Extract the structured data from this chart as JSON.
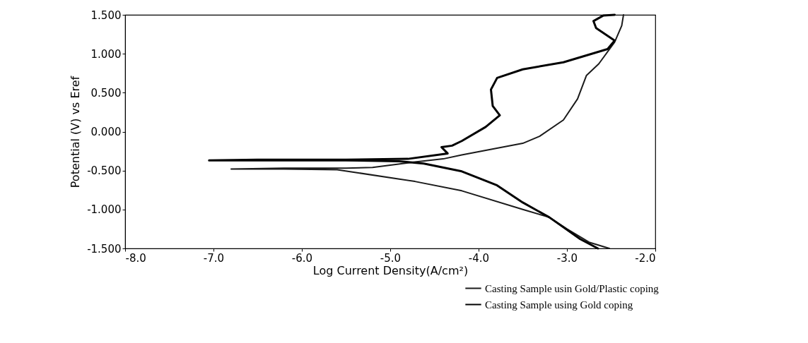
{
  "chart_data": {
    "type": "line",
    "xlabel": "Log Current Density(A/cm²)",
    "ylabel": "Potential (V) vs Eref",
    "xlim": [
      -8,
      -2
    ],
    "xticks": [
      {
        "value": -8,
        "label": "-8.0"
      },
      {
        "value": -7,
        "label": "-7.0"
      },
      {
        "value": -6,
        "label": "-6.0"
      },
      {
        "value": -5,
        "label": "-5.0"
      },
      {
        "value": -4,
        "label": "-4.0"
      },
      {
        "value": -3,
        "label": "-3.0"
      },
      {
        "value": -2,
        "label": "-2.0"
      }
    ],
    "ylim": [
      -1.5,
      1.5
    ],
    "yticks": [
      {
        "value": -1.5,
        "label": "-1.500"
      },
      {
        "value": -1,
        "label": "-1.000"
      },
      {
        "value": -0.5,
        "label": "-0.500"
      },
      {
        "value": 0,
        "label": "0.000"
      },
      {
        "value": 0.5,
        "label": "0.500"
      },
      {
        "value": 1,
        "label": "1.000"
      },
      {
        "value": 1.5,
        "label": "1.500"
      }
    ],
    "grid": false,
    "legend": "bottom right",
    "marker": "none",
    "line_style": "solid",
    "series": [
      {
        "name": "Casting Sample usin Gold/Plastic coping",
        "color": "#1a1a1a",
        "x": [
          -2.52,
          -2.75,
          -3.0,
          -3.2,
          -3.5,
          -4.19,
          -4.72,
          -5.36,
          -5.6,
          -6.2,
          -6.8,
          -6.2,
          -5.5,
          -5.2,
          -4.72,
          -4.4,
          -4.19,
          -3.5,
          -3.31,
          -3.04,
          -2.88,
          -2.78,
          -2.64,
          -2.46,
          -2.38,
          -2.36
        ],
        "values": [
          -1.5,
          -1.42,
          -1.25,
          -1.1,
          -1.0,
          -0.76,
          -0.64,
          -0.53,
          -0.49,
          -0.48,
          -0.48,
          -0.47,
          -0.47,
          -0.46,
          -0.39,
          -0.35,
          -0.3,
          -0.15,
          -0.06,
          0.15,
          0.42,
          0.72,
          0.87,
          1.15,
          1.36,
          1.5
        ]
      },
      {
        "name": "Casting Sample using Gold coping",
        "color": "#000000",
        "x": [
          -2.65,
          -2.85,
          -3.05,
          -3.2,
          -3.5,
          -3.79,
          -4.19,
          -4.62,
          -4.9,
          -5.5,
          -6.2,
          -7.05,
          -6.5,
          -5.5,
          -4.8,
          -4.35,
          -4.42,
          -4.3,
          -4.19,
          -3.92,
          -3.76,
          -3.84,
          -3.86,
          -3.79,
          -3.5,
          -3.04,
          -2.54,
          -2.46,
          -2.67,
          -2.7,
          -2.59,
          -2.46
        ],
        "values": [
          -1.5,
          -1.38,
          -1.22,
          -1.1,
          -0.91,
          -0.69,
          -0.51,
          -0.41,
          -0.38,
          -0.37,
          -0.37,
          -0.37,
          -0.36,
          -0.36,
          -0.35,
          -0.28,
          -0.2,
          -0.18,
          -0.12,
          0.06,
          0.21,
          0.33,
          0.54,
          0.69,
          0.8,
          0.89,
          1.06,
          1.17,
          1.33,
          1.42,
          1.49,
          1.5
        ]
      }
    ]
  }
}
